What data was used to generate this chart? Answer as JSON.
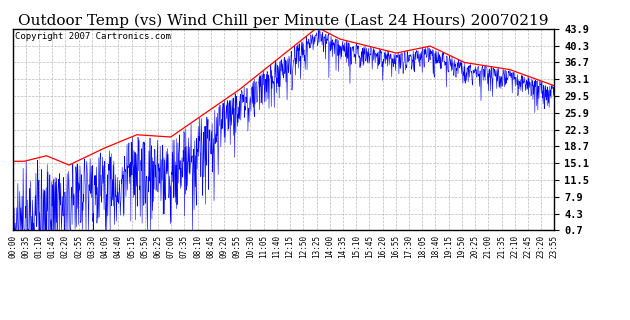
{
  "title": "Outdoor Temp (vs) Wind Chill per Minute (Last 24 Hours) 20070219",
  "copyright": "Copyright 2007 Cartronics.com",
  "yticks": [
    0.7,
    4.3,
    7.9,
    11.5,
    15.1,
    18.7,
    22.3,
    25.9,
    29.5,
    33.1,
    36.7,
    40.3,
    43.9
  ],
  "ymin": 0.7,
  "ymax": 43.9,
  "x_labels": [
    "00:00",
    "00:35",
    "01:10",
    "01:45",
    "02:20",
    "02:55",
    "03:30",
    "04:05",
    "04:40",
    "05:15",
    "05:50",
    "06:25",
    "07:00",
    "07:35",
    "08:10",
    "08:45",
    "09:20",
    "09:55",
    "10:30",
    "11:05",
    "11:40",
    "12:15",
    "12:50",
    "13:25",
    "14:00",
    "14:35",
    "15:10",
    "15:45",
    "16:20",
    "16:55",
    "17:30",
    "18:05",
    "18:40",
    "19:15",
    "19:50",
    "20:25",
    "21:00",
    "21:35",
    "22:10",
    "22:45",
    "23:20",
    "23:55"
  ],
  "background_color": "#ffffff",
  "plot_bg_color": "#ffffff",
  "grid_color": "#bbbbbb",
  "title_fontsize": 11,
  "copyright_fontsize": 6.5,
  "temp_color": "#ff0000",
  "wind_color": "#0000ff"
}
